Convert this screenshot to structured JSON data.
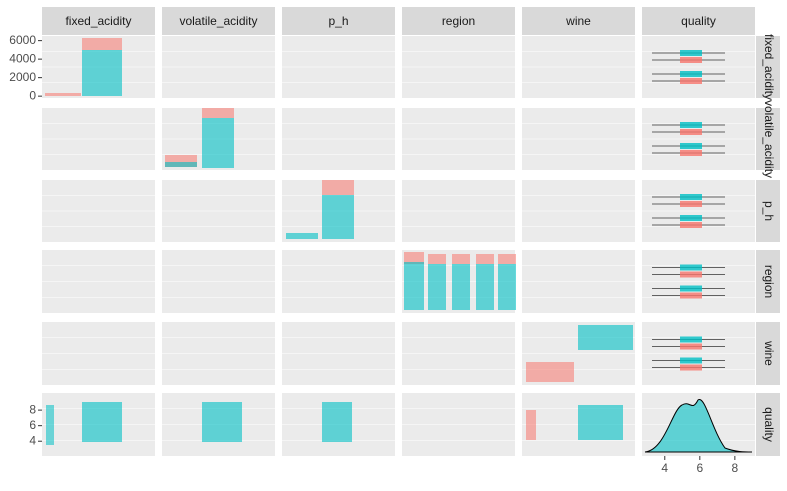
{
  "variables": [
    "fixed_acidity",
    "volatile_acidity",
    "p_h",
    "region",
    "wine",
    "quality"
  ],
  "axes": {
    "top_row_y": {
      "lim": [
        -200,
        6500
      ],
      "ticks": [
        0,
        2000,
        4000,
        6000
      ]
    },
    "quality_row_y": {
      "lim": [
        2.1,
        10.2
      ],
      "ticks": [
        4,
        6,
        8
      ]
    },
    "quality_col_x": {
      "lim": [
        2.7,
        9.15
      ],
      "ticks": [
        4,
        6,
        8
      ]
    }
  }
}
